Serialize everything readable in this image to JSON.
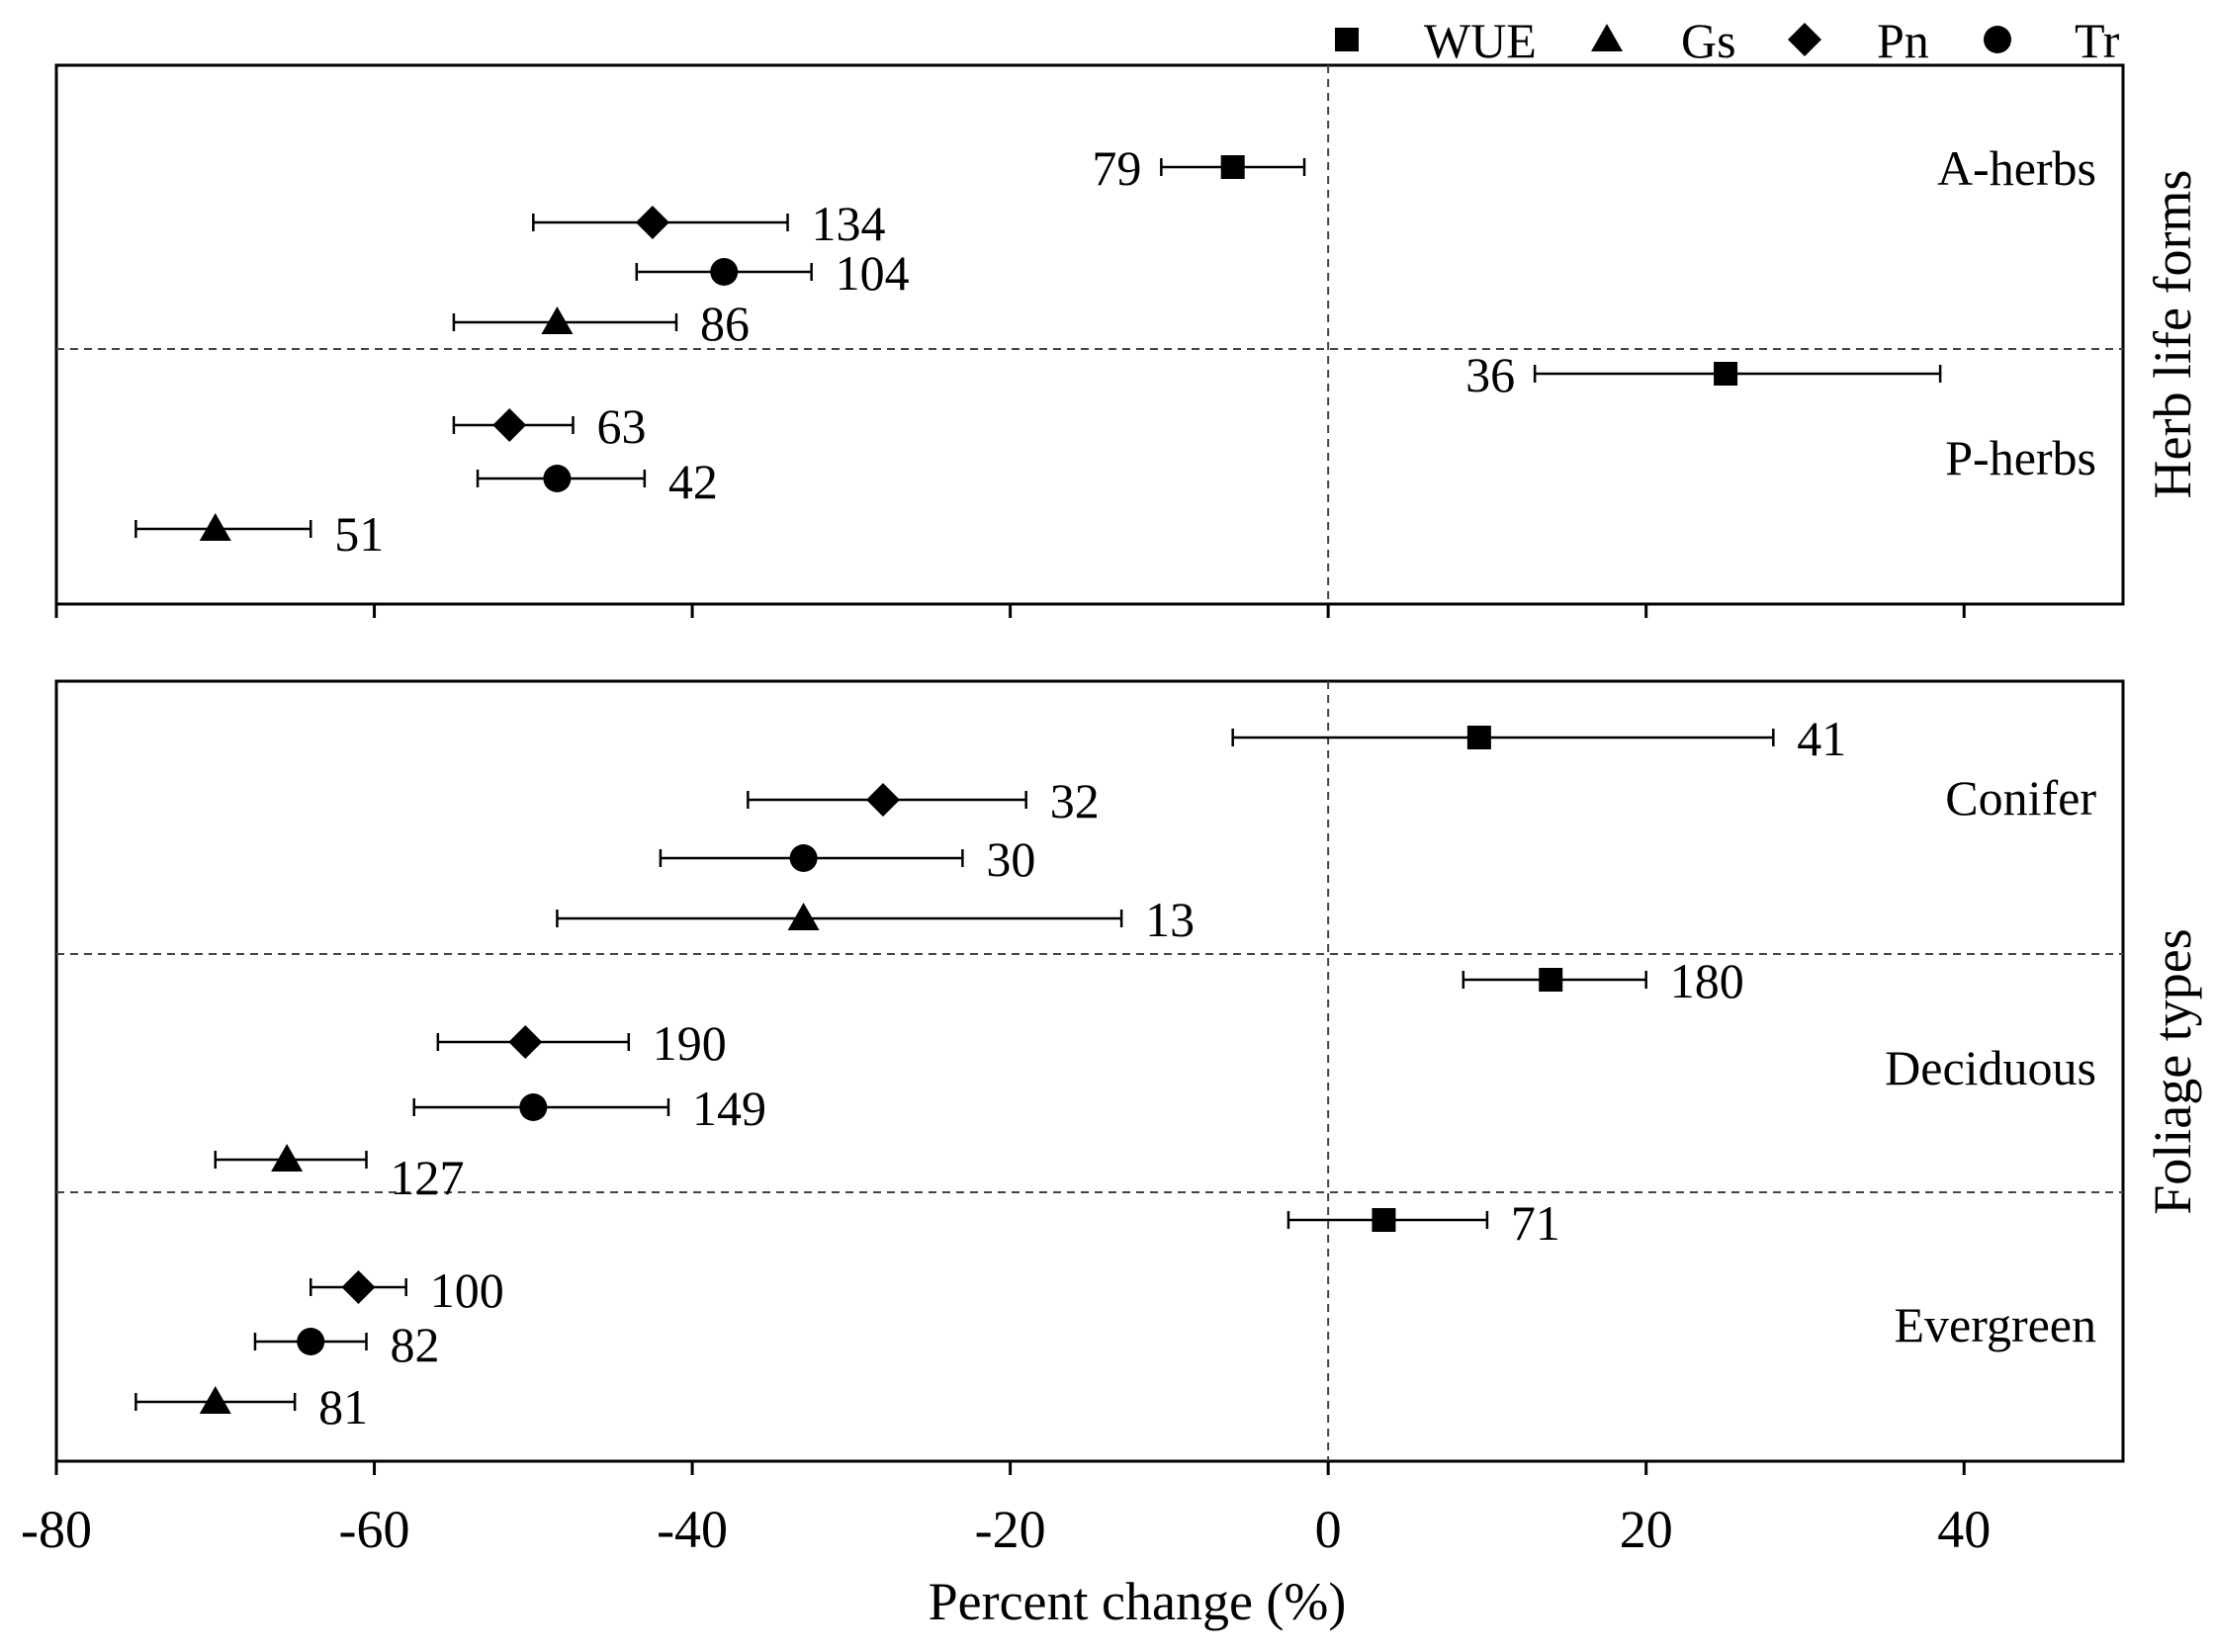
{
  "legend": [
    {
      "name": "WUE",
      "marker": "square"
    },
    {
      "name": "Gs",
      "marker": "triangle"
    },
    {
      "name": "Pn",
      "marker": "diamond"
    },
    {
      "name": "Tr",
      "marker": "circle"
    }
  ],
  "xlabel": "Percent change (%)",
  "xticks": [
    "-80",
    "-60",
    "-40",
    "-20",
    "0",
    "20",
    "40"
  ],
  "chart_data": {
    "type": "scatter",
    "subtype": "forest plot (mean ± CI with sample sizes)",
    "xlim": [
      -80,
      50
    ],
    "xlabel": "Percent change (%)",
    "xticks": [
      -80,
      -60,
      -40,
      -20,
      0,
      20,
      40
    ],
    "series_names": [
      "WUE",
      "Gs",
      "Pn",
      "Tr"
    ],
    "panels": [
      {
        "ylabel": "Herb life forms",
        "groups": [
          {
            "label": "A-herbs",
            "points": [
              {
                "series": "WUE",
                "mean": -6,
                "lo": -10.5,
                "hi": -1.5,
                "n": "79",
                "n_side": "left"
              },
              {
                "series": "Pn",
                "mean": -42.5,
                "lo": -50,
                "hi": -34,
                "n": "134",
                "n_side": "right"
              },
              {
                "series": "Tr",
                "mean": -38,
                "lo": -43.5,
                "hi": -32.5,
                "n": "104",
                "n_side": "right"
              },
              {
                "series": "Gs",
                "mean": -48.5,
                "lo": -55,
                "hi": -41,
                "n": "86",
                "n_side": "right"
              }
            ]
          },
          {
            "label": "P-herbs",
            "points": [
              {
                "series": "WUE",
                "mean": 25,
                "lo": 13,
                "hi": 38.5,
                "n": "36",
                "n_side": "left"
              },
              {
                "series": "Pn",
                "mean": -51.5,
                "lo": -55,
                "hi": -47.5,
                "n": "63",
                "n_side": "right"
              },
              {
                "series": "Tr",
                "mean": -48.5,
                "lo": -53.5,
                "hi": -43,
                "n": "42",
                "n_side": "right"
              },
              {
                "series": "Gs",
                "mean": -70,
                "lo": -75,
                "hi": -64,
                "n": "51",
                "n_side": "right"
              }
            ]
          }
        ]
      },
      {
        "ylabel": "Foliage types",
        "groups": [
          {
            "label": "Conifer",
            "points": [
              {
                "series": "WUE",
                "mean": 9.5,
                "lo": -6,
                "hi": 28,
                "n": "41",
                "n_side": "right"
              },
              {
                "series": "Pn",
                "mean": -28,
                "lo": -36.5,
                "hi": -19,
                "n": "32",
                "n_side": "right"
              },
              {
                "series": "Tr",
                "mean": -33,
                "lo": -42,
                "hi": -23,
                "n": "30",
                "n_side": "right"
              },
              {
                "series": "Gs",
                "mean": -33,
                "lo": -48.5,
                "hi": -13,
                "n": "13",
                "n_side": "right"
              }
            ]
          },
          {
            "label": "Deciduous",
            "points": [
              {
                "series": "WUE",
                "mean": 14,
                "lo": 8.5,
                "hi": 20,
                "n": "180",
                "n_side": "right"
              },
              {
                "series": "Pn",
                "mean": -50.5,
                "lo": -56,
                "hi": -44,
                "n": "190",
                "n_side": "right"
              },
              {
                "series": "Tr",
                "mean": -50,
                "lo": -57.5,
                "hi": -41.5,
                "n": "149",
                "n_side": "right"
              },
              {
                "series": "Gs",
                "mean": -65.5,
                "lo": -70,
                "hi": -60.5,
                "n": "127",
                "n_side": "right"
              }
            ]
          },
          {
            "label": "Evergreen",
            "points": [
              {
                "series": "WUE",
                "mean": 3.5,
                "lo": -2.5,
                "hi": 10,
                "n": "71",
                "n_side": "right"
              },
              {
                "series": "Pn",
                "mean": -61,
                "lo": -64,
                "hi": -58,
                "n": "100",
                "n_side": "right"
              },
              {
                "series": "Tr",
                "mean": -64,
                "lo": -67.5,
                "hi": -60.5,
                "n": "82",
                "n_side": "right"
              },
              {
                "series": "Gs",
                "mean": -70,
                "lo": -75,
                "hi": -65,
                "n": "81",
                "n_side": "right"
              }
            ]
          }
        ]
      }
    ]
  }
}
